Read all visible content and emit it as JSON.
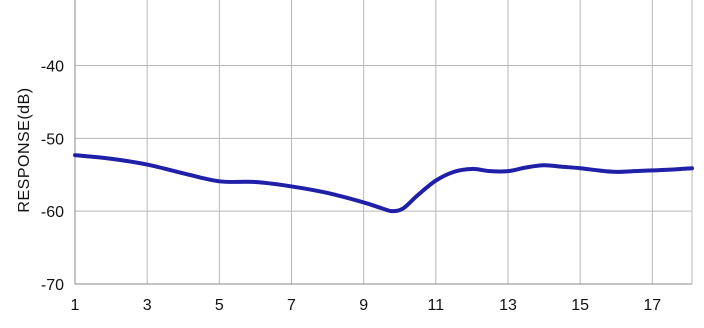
{
  "chart_data": {
    "type": "line",
    "title": "",
    "xlabel": "",
    "ylabel": "RESPONSE(dB)",
    "xlim": [
      1,
      18.1
    ],
    "ylim": [
      -70,
      -31
    ],
    "x_ticks": [
      1,
      3,
      5,
      7,
      9,
      11,
      13,
      15,
      17
    ],
    "y_ticks": [
      -40,
      -50,
      -60,
      -70
    ],
    "x_tick_labels": [
      "1",
      "3",
      "5",
      "7",
      "9",
      "11",
      "13",
      "15",
      "17"
    ],
    "y_tick_labels": [
      "-40",
      "-50",
      "-60",
      "-70"
    ],
    "grid": true,
    "legend": "none",
    "series": [
      {
        "color": "#1f1fa8",
        "x": [
          1,
          2,
          3,
          4,
          5,
          6,
          7,
          8,
          9,
          9.5,
          9.8,
          10.1,
          10.5,
          11,
          11.5,
          12,
          12.5,
          13,
          13.5,
          14,
          14.5,
          15,
          15.5,
          16,
          16.5,
          17,
          17.5,
          18.1
        ],
        "y": [
          -52.3,
          -52.8,
          -53.6,
          -54.8,
          -55.9,
          -56.0,
          -56.6,
          -57.5,
          -58.8,
          -59.6,
          -60.0,
          -59.6,
          -57.8,
          -55.8,
          -54.6,
          -54.2,
          -54.5,
          -54.5,
          -54.0,
          -53.7,
          -53.9,
          -54.1,
          -54.4,
          -54.6,
          -54.5,
          -54.4,
          -54.3,
          -54.1
        ]
      }
    ]
  }
}
